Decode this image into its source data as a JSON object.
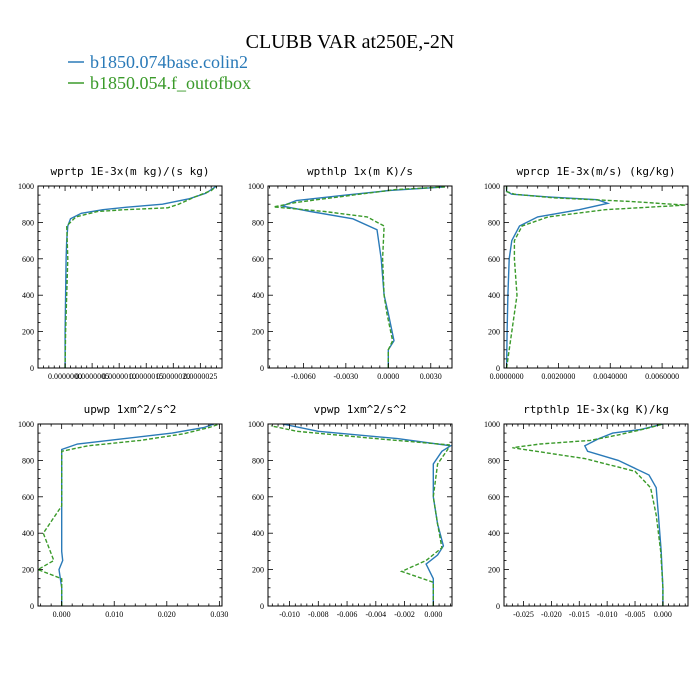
{
  "figure": {
    "title": "CLUBB VAR at250E,-2N",
    "legend": [
      {
        "label": "b1850.074base.colin2",
        "color": "#2a7ab8"
      },
      {
        "label": "b1850.054.f_outofbox",
        "color": "#3a9a2a"
      }
    ]
  },
  "chart_data": [
    {
      "type": "line",
      "title": "wprtp   1E-3x(m kg)/(s kg)",
      "xlim": [
        -5e-07,
        2.9e-06
      ],
      "ylim": [
        1000,
        0
      ],
      "y_inverted": true,
      "yticks": [
        0,
        200,
        400,
        600,
        800,
        1000
      ],
      "yticklabels": [
        "0",
        "200",
        "400",
        "600",
        "800",
        "1000"
      ],
      "xticks": [
        0.0,
        5e-07,
        1e-06,
        1.5e-06,
        2e-06,
        2.5e-06
      ],
      "xticklabels": [
        "0.0000000",
        "0.0000005",
        "0.0000010",
        "0.0000015",
        "0.0000020",
        "0.0000025"
      ],
      "series": [
        {
          "name": "b1850.074base.colin2",
          "color": "#2a7ab8",
          "dash": "solid",
          "x": [
            0.0,
            0.0,
            1e-08,
            2e-08,
            3e-08,
            5e-08,
            1e-07,
            3e-07,
            7e-07,
            1.2e-06,
            1.8e-06,
            2.3e-06,
            2.6e-06,
            2.8e-06
          ],
          "y": [
            0,
            200,
            400,
            600,
            700,
            780,
            820,
            850,
            870,
            885,
            900,
            930,
            960,
            1000
          ]
        },
        {
          "name": "b1850.054.f_outofbox",
          "color": "#3a9a2a",
          "dash": "dashed",
          "x": [
            0.0,
            1e-08,
            3e-08,
            5e-08,
            4e-08,
            3e-08,
            2e-07,
            6e-07,
            1.1e-06,
            1.9e-06,
            2.1e-06,
            2.4e-06,
            2.7e-06,
            2.8e-06
          ],
          "y": [
            0,
            200,
            400,
            600,
            700,
            780,
            830,
            860,
            870,
            880,
            900,
            940,
            975,
            1000
          ]
        }
      ]
    },
    {
      "type": "line",
      "title": "wpthlp   1x(m K)/s",
      "xlim": [
        -0.0085,
        0.0045
      ],
      "ylim": [
        1000,
        0
      ],
      "y_inverted": true,
      "yticks": [
        0,
        200,
        400,
        600,
        800,
        1000
      ],
      "yticklabels": [
        "0",
        "200",
        "400",
        "600",
        "800",
        "1000"
      ],
      "xticks": [
        -0.006,
        -0.003,
        0.0,
        0.003
      ],
      "xticklabels": [
        "-0.0060",
        "-0.0030",
        "0.0000",
        "0.0030"
      ],
      "series": [
        {
          "name": "b1850.074base.colin2",
          "color": "#2a7ab8",
          "dash": "solid",
          "x": [
            0.0,
            0.0,
            0.0004,
            0.0,
            -0.0003,
            -0.0005,
            -0.0008,
            -0.0025,
            -0.0055,
            -0.0075,
            -0.0065,
            -0.003,
            0.0,
            0.004
          ],
          "y": [
            0,
            100,
            150,
            300,
            400,
            600,
            760,
            820,
            860,
            890,
            920,
            950,
            975,
            995
          ]
        },
        {
          "name": "b1850.054.f_outofbox",
          "color": "#3a9a2a",
          "dash": "dashed",
          "x": [
            0.0,
            0.0,
            0.0003,
            -0.0001,
            -0.0003,
            -0.0004,
            -0.0003,
            -0.0015,
            -0.0045,
            -0.0081,
            -0.0065,
            -0.0025,
            0.0005,
            0.004
          ],
          "y": [
            0,
            100,
            150,
            300,
            400,
            600,
            780,
            830,
            860,
            885,
            910,
            950,
            980,
            995
          ]
        }
      ]
    },
    {
      "type": "line",
      "title": "wprcp   1E-3x(m/s) (kg/kg)",
      "xlim": [
        -0.0001,
        0.007
      ],
      "ylim": [
        1000,
        0
      ],
      "y_inverted": true,
      "yticks": [
        0,
        200,
        400,
        600,
        800,
        1000
      ],
      "yticklabels": [
        "0",
        "200",
        "400",
        "600",
        "800",
        "1000"
      ],
      "xticks": [
        0.0,
        0.002,
        0.004,
        0.006
      ],
      "xticklabels": [
        "0.0000000",
        "0.0020000",
        "0.0040000",
        "0.0060000"
      ],
      "series": [
        {
          "name": "b1850.074base.colin2",
          "color": "#2a7ab8",
          "dash": "solid",
          "x": [
            0.0,
            2e-05,
            5e-05,
            0.0001,
            0.0002,
            0.0005,
            0.0012,
            0.0028,
            0.0039,
            0.0035,
            0.0016,
            0.0002,
            0.0,
            0.0
          ],
          "y": [
            0,
            200,
            400,
            600,
            700,
            780,
            830,
            870,
            905,
            925,
            940,
            955,
            970,
            1000
          ]
        },
        {
          "name": "b1850.054.f_outofbox",
          "color": "#3a9a2a",
          "dash": "dashed",
          "x": [
            0.0,
            0.0002,
            0.0004,
            0.0003,
            0.0003,
            0.0006,
            0.0016,
            0.0038,
            0.0069,
            0.0048,
            0.0018,
            0.0003,
            0.0,
            0.0
          ],
          "y": [
            0,
            200,
            400,
            600,
            700,
            780,
            830,
            870,
            895,
            915,
            935,
            955,
            970,
            1000
          ]
        }
      ]
    },
    {
      "type": "line",
      "title": "upwp   1xm^2/s^2",
      "xlim": [
        -0.0045,
        0.0305
      ],
      "ylim": [
        1000,
        0
      ],
      "y_inverted": true,
      "yticks": [
        0,
        200,
        400,
        600,
        800,
        1000
      ],
      "yticklabels": [
        "0",
        "200",
        "400",
        "600",
        "800",
        "1000"
      ],
      "xticks": [
        0.0,
        0.01,
        0.02,
        0.03
      ],
      "xticklabels": [
        "0.000",
        "0.010",
        "0.020",
        "0.030"
      ],
      "series": [
        {
          "name": "b1850.074base.colin2",
          "color": "#2a7ab8",
          "dash": "solid",
          "x": [
            0.0,
            0.0,
            -0.0005,
            0.0002,
            0.0,
            0.0,
            0.0,
            0.0,
            0.003,
            0.012,
            0.021,
            0.027,
            0.029
          ],
          "y": [
            0,
            100,
            200,
            250,
            300,
            500,
            700,
            860,
            890,
            920,
            950,
            980,
            1000
          ]
        },
        {
          "name": "b1850.054.f_outofbox",
          "color": "#3a9a2a",
          "dash": "dashed",
          "x": [
            0.0,
            0.0,
            -0.0045,
            -0.0015,
            -0.0035,
            0.0,
            0.0,
            0.0,
            0.005,
            0.015,
            0.023,
            0.028,
            0.03
          ],
          "y": [
            0,
            150,
            200,
            250,
            400,
            550,
            700,
            850,
            880,
            910,
            945,
            980,
            1000
          ]
        }
      ]
    },
    {
      "type": "line",
      "title": "vpwp   1xm^2/s^2",
      "xlim": [
        -0.0115,
        0.0013
      ],
      "ylim": [
        1000,
        0
      ],
      "y_inverted": true,
      "yticks": [
        0,
        200,
        400,
        600,
        800,
        1000
      ],
      "yticklabels": [
        "0",
        "200",
        "400",
        "600",
        "800",
        "1000"
      ],
      "xticks": [
        -0.01,
        -0.008,
        -0.006,
        -0.004,
        -0.002,
        0.0
      ],
      "xticklabels": [
        "-0.010",
        "-0.008",
        "-0.006",
        "-0.004",
        "-0.002",
        "0.000"
      ],
      "series": [
        {
          "name": "b1850.074base.colin2",
          "color": "#2a7ab8",
          "dash": "solid",
          "x": [
            0.0,
            0.0,
            -0.0005,
            0.0003,
            0.0007,
            0.0003,
            0.0,
            0.0,
            0.0006,
            0.0012,
            -0.0025,
            -0.008,
            -0.0105
          ],
          "y": [
            0,
            150,
            230,
            280,
            330,
            450,
            600,
            780,
            850,
            880,
            920,
            960,
            1000
          ]
        },
        {
          "name": "b1850.054.f_outofbox",
          "color": "#3a9a2a",
          "dash": "dashed",
          "x": [
            0.0,
            0.0,
            -0.0022,
            -0.0005,
            0.0006,
            0.0003,
            0.0,
            0.0003,
            0.001,
            0.0011,
            -0.004,
            -0.0095,
            -0.0113
          ],
          "y": [
            0,
            130,
            190,
            250,
            320,
            450,
            600,
            780,
            860,
            885,
            920,
            960,
            990
          ]
        }
      ]
    },
    {
      "type": "line",
      "title": "rtpthlp   1E-3x(kg K)/kg",
      "xlim": [
        -0.0285,
        0.0045
      ],
      "ylim": [
        1000,
        0
      ],
      "y_inverted": true,
      "yticks": [
        0,
        200,
        400,
        600,
        800,
        1000
      ],
      "yticklabels": [
        "0",
        "200",
        "400",
        "600",
        "800",
        "1000"
      ],
      "xticks": [
        -0.025,
        -0.02,
        -0.015,
        -0.01,
        -0.005,
        0.0
      ],
      "xticklabels": [
        "-0.025",
        "-0.020",
        "-0.015",
        "-0.010",
        "-0.005",
        "0.000"
      ],
      "series": [
        {
          "name": "b1850.074base.colin2",
          "color": "#2a7ab8",
          "dash": "solid",
          "x": [
            0.0,
            0.0,
            -0.0003,
            -0.0008,
            -0.0012,
            -0.0025,
            -0.008,
            -0.0135,
            -0.014,
            -0.0115,
            -0.009,
            -0.004,
            0.0
          ],
          "y": [
            0,
            100,
            300,
            500,
            650,
            720,
            800,
            850,
            880,
            920,
            950,
            970,
            1000
          ]
        },
        {
          "name": "b1850.054.f_outofbox",
          "color": "#3a9a2a",
          "dash": "dashed",
          "x": [
            0.0,
            0.0,
            -0.0004,
            -0.0012,
            -0.0022,
            -0.005,
            -0.014,
            -0.027,
            -0.022,
            -0.013,
            -0.008,
            -0.003,
            0.0
          ],
          "y": [
            0,
            100,
            300,
            500,
            650,
            740,
            810,
            870,
            890,
            910,
            940,
            975,
            1000
          ]
        }
      ]
    }
  ]
}
